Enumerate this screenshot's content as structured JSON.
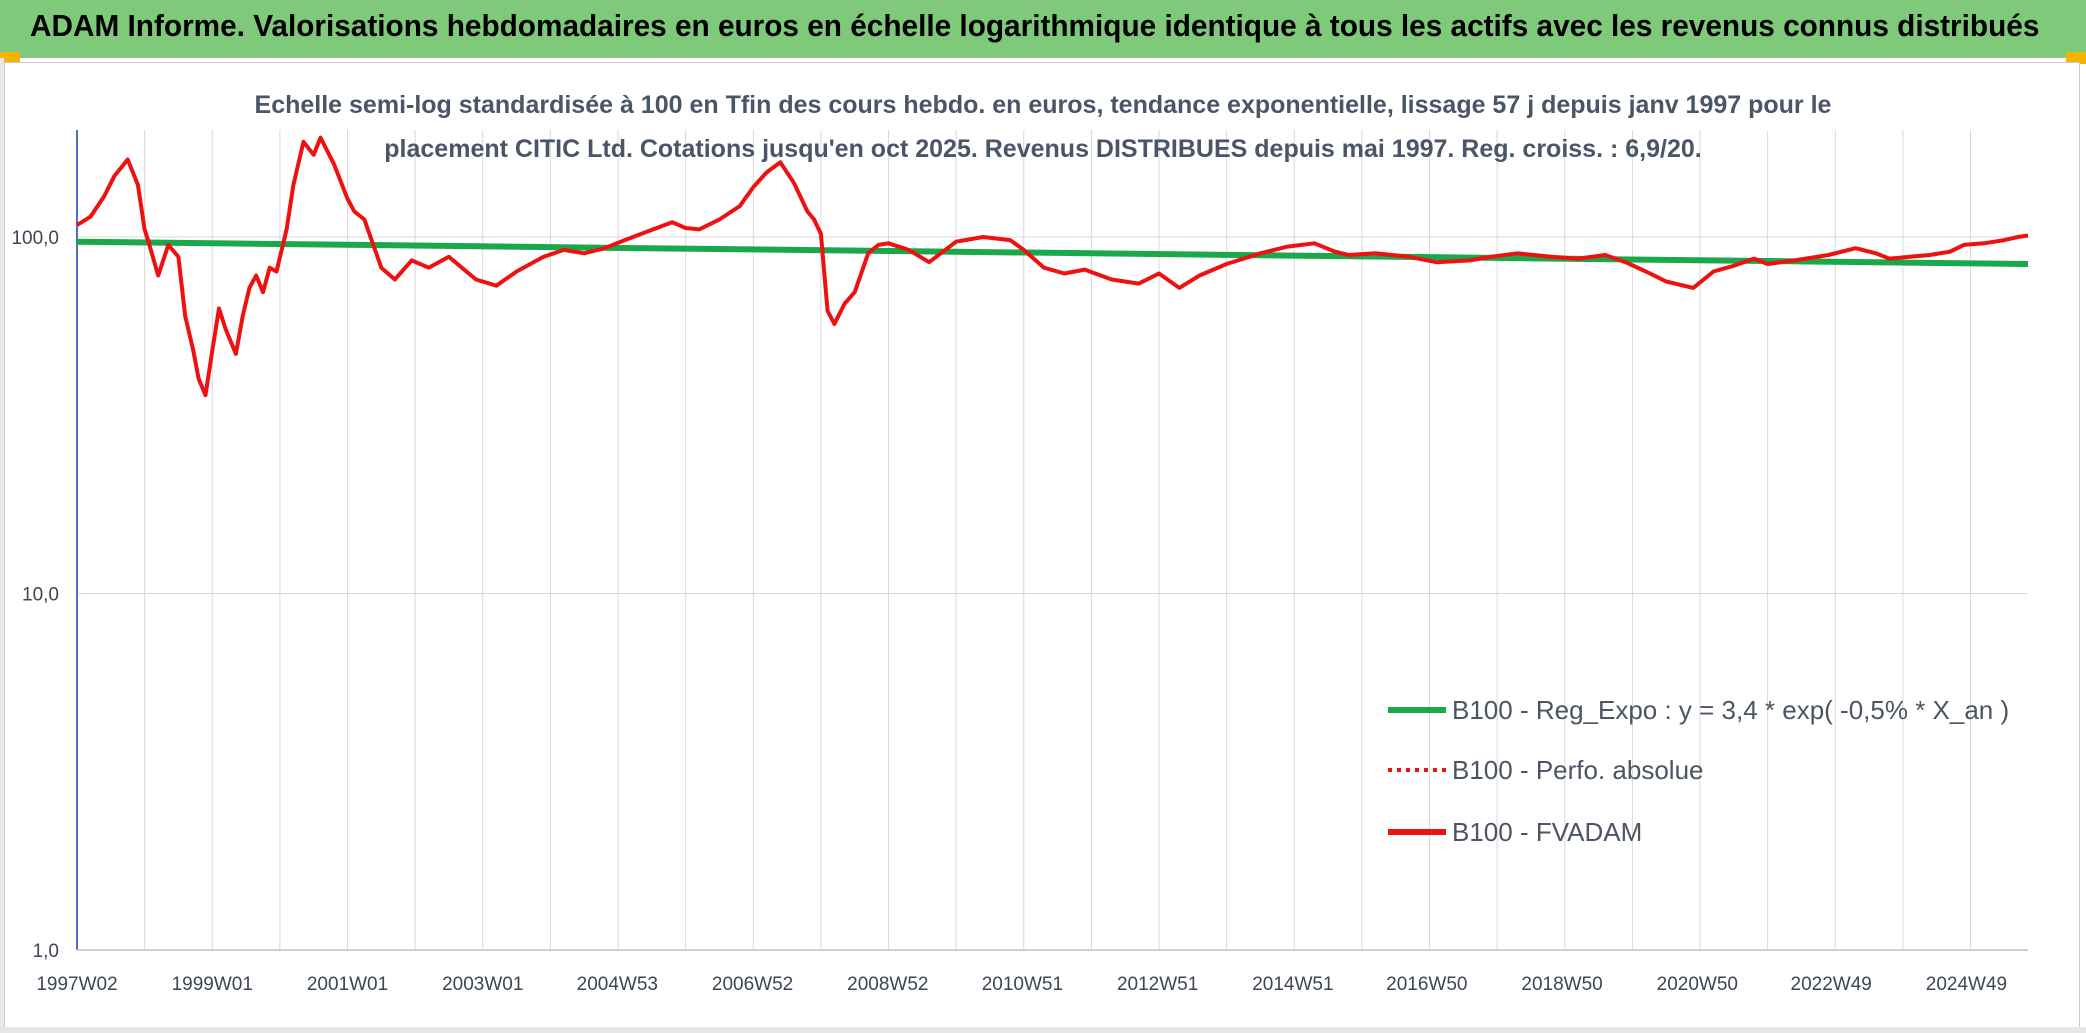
{
  "header": {
    "title": "ADAM Informe. Valorisations hebdomadaires en euros en échelle logarithmique identique à tous les actifs avec les revenus connus distribués"
  },
  "colors": {
    "header_bg": "#7fc97a",
    "trend": "#1aa84a",
    "fvadam": "#ee1111",
    "perfo": "#ee1111",
    "grid": "#d9d9d9"
  },
  "chart_data": {
    "type": "line",
    "title_lines": [
      "Echelle semi-log standardisée à 100 en Tfin des cours hebdo. en euros, tendance exponentielle, lissage 57 j depuis janv 1997 pour le",
      "placement CITIC Ltd. Cotations jusqu'en oct 2025. Revenus DISTRIBUES depuis mai 1997. Reg. croiss. : 6,9/20."
    ],
    "y_scale": "log",
    "ylim": [
      1,
      200
    ],
    "y_ticks": [
      {
        "value": 100,
        "label": "100,0"
      },
      {
        "value": 10,
        "label": "10,0"
      },
      {
        "value": 1,
        "label": "1,0"
      }
    ],
    "xlim": [
      1997.0,
      2025.85
    ],
    "x_ticks": [
      {
        "x": 1997.0,
        "label": "1997W02"
      },
      {
        "x": 1999.0,
        "label": "1999W01"
      },
      {
        "x": 2001.0,
        "label": "2001W01"
      },
      {
        "x": 2003.0,
        "label": "2003W01"
      },
      {
        "x": 2004.99,
        "label": "2004W53"
      },
      {
        "x": 2006.99,
        "label": "2006W52"
      },
      {
        "x": 2008.99,
        "label": "2008W52"
      },
      {
        "x": 2010.98,
        "label": "2010W51"
      },
      {
        "x": 2012.98,
        "label": "2012W51"
      },
      {
        "x": 2014.98,
        "label": "2014W51"
      },
      {
        "x": 2016.96,
        "label": "2016W50"
      },
      {
        "x": 2018.96,
        "label": "2018W50"
      },
      {
        "x": 2020.96,
        "label": "2020W50"
      },
      {
        "x": 2022.94,
        "label": "2022W49"
      },
      {
        "x": 2024.94,
        "label": "2024W49"
      }
    ],
    "grid": "vertical",
    "legend_position": "bottom-right",
    "series": [
      {
        "name": "B100 - Reg_Expo : y = 3,4 * exp( -0,5% *  X_an )",
        "style": "solid-green",
        "x": [
          1997.0,
          2025.85
        ],
        "y": [
          97,
          84
        ]
      },
      {
        "name": "B100 - Perfo. absolue",
        "style": "dotted-red",
        "x": [],
        "y": []
      },
      {
        "name": "B100 - FVADAM",
        "style": "solid-red",
        "x": [
          1997.0,
          1997.2,
          1997.4,
          1997.55,
          1997.75,
          1997.9,
          1998.0,
          1998.05,
          1998.2,
          1998.35,
          1998.5,
          1998.6,
          1998.72,
          1998.8,
          1998.9,
          1999.0,
          1999.1,
          1999.2,
          1999.35,
          1999.45,
          1999.55,
          1999.65,
          1999.75,
          1999.85,
          1999.95,
          2000.1,
          2000.2,
          2000.35,
          2000.5,
          2000.6,
          2000.8,
          2001.0,
          2001.1,
          2001.25,
          2001.5,
          2001.7,
          2001.95,
          2002.2,
          2002.5,
          2002.9,
          2003.2,
          2003.5,
          2003.9,
          2004.2,
          2004.5,
          2004.8,
          2005.1,
          2005.4,
          2005.8,
          2006.0,
          2006.2,
          2006.5,
          2006.8,
          2007.0,
          2007.2,
          2007.4,
          2007.6,
          2007.8,
          2007.9,
          2008.0,
          2008.1,
          2008.2,
          2008.35,
          2008.5,
          2008.7,
          2008.85,
          2009.0,
          2009.3,
          2009.6,
          2010.0,
          2010.4,
          2010.8,
          2011.0,
          2011.3,
          2011.6,
          2011.9,
          2012.3,
          2012.7,
          2013.0,
          2013.3,
          2013.6,
          2014.0,
          2014.5,
          2014.9,
          2015.3,
          2015.6,
          2015.8,
          2016.2,
          2016.7,
          2017.1,
          2017.6,
          2017.9,
          2018.3,
          2018.8,
          2019.2,
          2019.6,
          2019.9,
          2020.2,
          2020.5,
          2020.9,
          2021.2,
          2021.5,
          2021.8,
          2022.0,
          2022.4,
          2022.9,
          2023.3,
          2023.6,
          2023.8,
          2024.1,
          2024.4,
          2024.7,
          2024.9,
          2025.2,
          2025.5,
          2025.7,
          2025.85
        ],
        "y": [
          108,
          114,
          130,
          148,
          165,
          140,
          105,
          98,
          78,
          95,
          88,
          60,
          48,
          40,
          36,
          48,
          63,
          55,
          47,
          60,
          72,
          78,
          70,
          82,
          80,
          105,
          140,
          185,
          170,
          190,
          160,
          128,
          118,
          112,
          82,
          76,
          86,
          82,
          88,
          76,
          73,
          80,
          88,
          92,
          90,
          93,
          98,
          103,
          110,
          106,
          105,
          112,
          122,
          138,
          152,
          162,
          142,
          118,
          112,
          102,
          62,
          57,
          65,
          70,
          90,
          95,
          96,
          92,
          85,
          97,
          100,
          98,
          92,
          82,
          79,
          81,
          76,
          74,
          79,
          72,
          78,
          84,
          90,
          94,
          96,
          91,
          89,
          90,
          88,
          85,
          86,
          88,
          90,
          88,
          87,
          89,
          85,
          80,
          75,
          72,
          80,
          83,
          87,
          84,
          86,
          89,
          93,
          90,
          87,
          88,
          89,
          91,
          95,
          96,
          98,
          100,
          101
        ]
      }
    ]
  }
}
